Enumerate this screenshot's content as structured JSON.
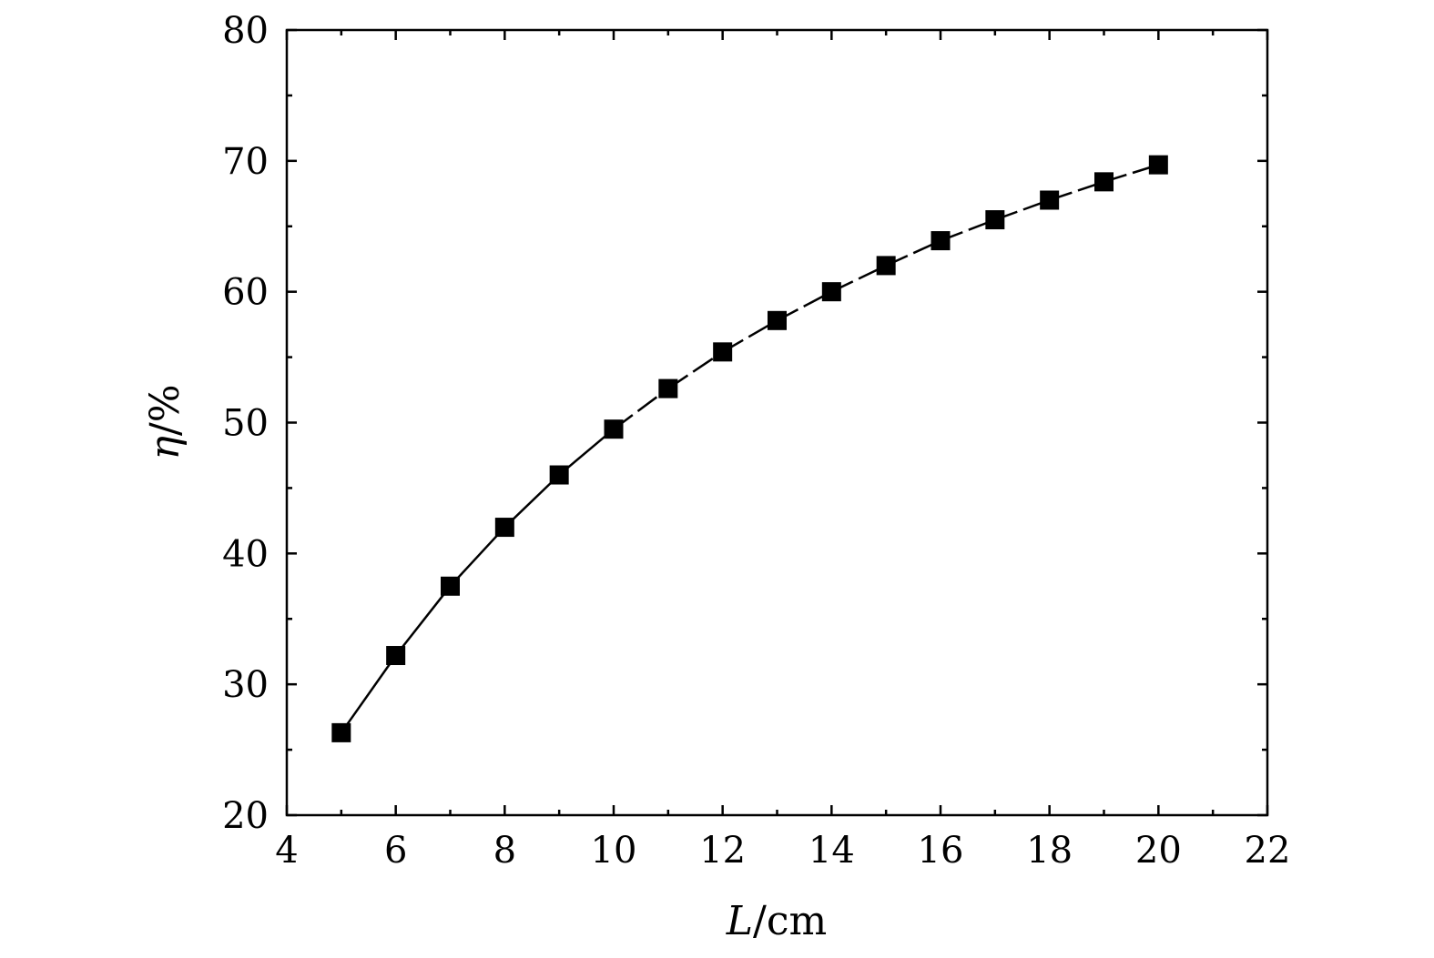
{
  "chart_data": {
    "type": "line",
    "xlabel_italic": "L",
    "xlabel_unit": "/cm",
    "ylabel_italic": "η",
    "ylabel_unit": "/%",
    "xlim": [
      4,
      22
    ],
    "ylim": [
      20,
      80
    ],
    "xticks": [
      4,
      6,
      8,
      10,
      12,
      14,
      16,
      18,
      20,
      22
    ],
    "yticks": [
      20,
      30,
      40,
      50,
      60,
      70,
      80
    ],
    "x_minor_step": 1,
    "y_minor_step": 5,
    "grid": false,
    "marker": "square",
    "line_style": "dashed-solid",
    "color": "#000000",
    "series": [
      {
        "x": [
          5,
          6,
          7,
          8,
          9,
          10,
          11,
          12,
          13,
          14,
          15,
          16,
          17,
          18,
          19,
          20
        ],
        "values": [
          26.3,
          32.2,
          37.5,
          42.0,
          46.0,
          49.5,
          52.6,
          55.4,
          57.8,
          60.0,
          62.0,
          63.9,
          65.5,
          67.0,
          68.4,
          69.7
        ]
      }
    ]
  }
}
